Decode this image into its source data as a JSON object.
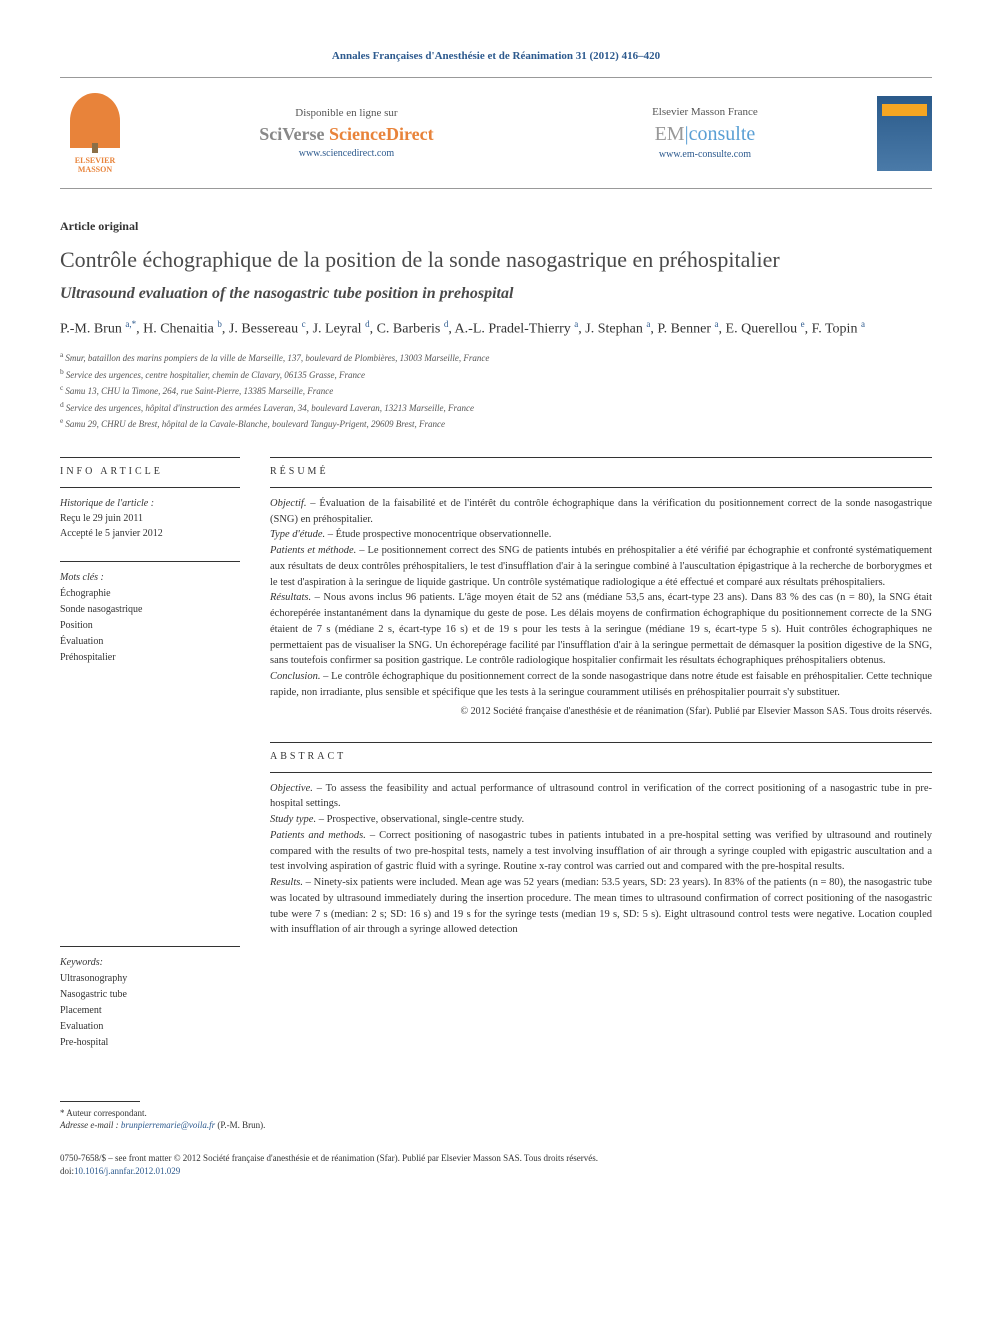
{
  "journal_header": "Annales Françaises d'Anesthésie et de Réanimation 31 (2012) 416–420",
  "banner": {
    "elsevier_label": "ELSEVIER MASSON",
    "disponible": "Disponible en ligne sur",
    "sciverse_sci": "SciVerse ",
    "sciverse_direct": "ScienceDirect",
    "sciverse_url": "www.sciencedirect.com",
    "masson_label": "Elsevier Masson France",
    "em_prefix": "EM",
    "em_suffix": "consulte",
    "em_url": "www.em-consulte.com"
  },
  "article_type": "Article original",
  "title": "Contrôle échographique de la position de la sonde nasogastrique en préhospitalier",
  "subtitle": "Ultrasound evaluation of the nasogastric tube position in prehospital",
  "authors_html": "P.-M. Brun <sup>a,*</sup>, H. Chenaitia <sup>b</sup>, J. Bessereau <sup>c</sup>, J. Leyral <sup>d</sup>, C. Barberis <sup>d</sup>, A.-L. Pradel-Thierry <sup>a</sup>, J. Stephan <sup>a</sup>, P. Benner <sup>a</sup>, E. Querellou <sup>e</sup>, F. Topin <sup>a</sup>",
  "affiliations": [
    {
      "sup": "a",
      "text": "Smur, bataillon des marins pompiers de la ville de Marseille, 137, boulevard de Plombières, 13003 Marseille, France"
    },
    {
      "sup": "b",
      "text": "Service des urgences, centre hospitalier, chemin de Clavary, 06135 Grasse, France"
    },
    {
      "sup": "c",
      "text": "Samu 13, CHU la Timone, 264, rue Saint-Pierre, 13385 Marseille, France"
    },
    {
      "sup": "d",
      "text": "Service des urgences, hôpital d'instruction des armées Laveran, 34, boulevard Laveran, 13213 Marseille, France"
    },
    {
      "sup": "e",
      "text": "Samu 29, CHRU de Brest, hôpital de la Cavale-Blanche, boulevard Tanguy-Prigent, 29609 Brest, France"
    }
  ],
  "info_header": "INFO ARTICLE",
  "historique_label": "Historique de l'article :",
  "received": "Reçu le 29 juin 2011",
  "accepted": "Accepté le 5 janvier 2012",
  "mots_cles_label": "Mots clés :",
  "mots_cles": [
    "Échographie",
    "Sonde nasogastrique",
    "Position",
    "Évaluation",
    "Préhospitalier"
  ],
  "resume_header": "RÉSUMÉ",
  "resume": {
    "objectif_label": "Objectif. –",
    "objectif": " Évaluation de la faisabilité et de l'intérêt du contrôle échographique dans la vérification du positionnement correct de la sonde nasogastrique (SNG) en préhospitalier.",
    "type_label": "Type d'étude. –",
    "type": " Étude prospective monocentrique observationnelle.",
    "patients_label": "Patients et méthode. –",
    "patients": " Le positionnement correct des SNG de patients intubés en préhospitalier a été vérifié par échographie et confronté systématiquement aux résultats de deux contrôles préhospitaliers, le test d'insufflation d'air à la seringue combiné à l'auscultation épigastrique à la recherche de borborygmes et le test d'aspiration à la seringue de liquide gastrique. Un contrôle systématique radiologique a été effectué et comparé aux résultats préhospitaliers.",
    "resultats_label": "Résultats. –",
    "resultats": " Nous avons inclus 96 patients. L'âge moyen était de 52 ans (médiane 53,5 ans, écart-type 23 ans). Dans 83 % des cas (n = 80), la SNG était échorepérée instantanément dans la dynamique du geste de pose. Les délais moyens de confirmation échographique du positionnement correcte de la SNG étaient de 7 s (médiane 2 s, écart-type 16 s) et de 19 s pour les tests à la seringue (médiane 19 s, écart-type 5 s). Huit contrôles échographiques ne permettaient pas de visualiser la SNG. Un échorepérage facilité par l'insufflation d'air à la seringue permettait de démasquer la position digestive de la SNG, sans toutefois confirmer sa position gastrique. Le contrôle radiologique hospitalier confirmait les résultats échographiques préhospitaliers obtenus.",
    "conclusion_label": "Conclusion. –",
    "conclusion": " Le contrôle échographique du positionnement correct de la sonde nasogastrique dans notre étude est faisable en préhospitalier. Cette technique rapide, non irradiante, plus sensible et spécifique que les tests à la seringue couramment utilisés en préhospitalier pourrait s'y substituer.",
    "copyright": "© 2012 Société française d'anesthésie et de réanimation (Sfar). Publié par Elsevier Masson SAS. Tous droits réservés."
  },
  "keywords_label": "Keywords:",
  "keywords": [
    "Ultrasonography",
    "Nasogastric tube",
    "Placement",
    "Evaluation",
    "Pre-hospital"
  ],
  "abstract_header": "ABSTRACT",
  "abstract": {
    "objective_label": "Objective. –",
    "objective": " To assess the feasibility and actual performance of ultrasound control in verification of the correct positioning of a nasogastric tube in pre-hospital settings.",
    "study_label": "Study type. –",
    "study": " Prospective, observational, single-centre study.",
    "patients_label": "Patients and methods. –",
    "patients": " Correct positioning of nasogastric tubes in patients intubated in a pre-hospital setting was verified by ultrasound and routinely compared with the results of two pre-hospital tests, namely a test involving insufflation of air through a syringe coupled with epigastric auscultation and a test involving aspiration of gastric fluid with a syringe. Routine x-ray control was carried out and compared with the pre-hospital results.",
    "results_label": "Results. –",
    "results": " Ninety-six patients were included. Mean age was 52 years (median: 53.5 years, SD: 23 years). In 83% of the patients (n = 80), the nasogastric tube was located by ultrasound immediately during the insertion procedure. The mean times to ultrasound confirmation of correct positioning of the nasogastric tube were 7 s (median: 2 s; SD: 16 s) and 19 s for the syringe tests (median 19 s, SD: 5 s). Eight ultrasound control tests were negative. Location coupled with insufflation of air through a syringe allowed detection"
  },
  "footnote": {
    "corr_label": "* Auteur correspondant.",
    "email_label": "Adresse e-mail :",
    "email": "brunpierremarie@voila.fr",
    "email_name": " (P.-M. Brun)."
  },
  "footer": {
    "issn": "0750-7658/$ – see front matter © 2012 Société française d'anesthésie et de réanimation (Sfar). Publié par Elsevier Masson SAS. Tous droits réservés.",
    "doi_label": "doi:",
    "doi": "10.1016/j.annfar.2012.01.029"
  },
  "colors": {
    "link": "#2d5a8e",
    "orange": "#e8833a",
    "text": "#333333"
  }
}
